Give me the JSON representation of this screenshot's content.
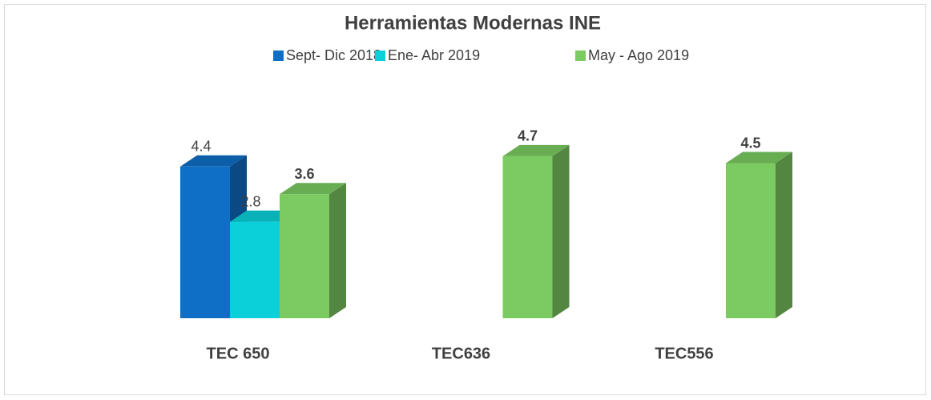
{
  "chart_data": {
    "type": "bar3d",
    "title": "Herramientas Modernas INE",
    "categories": [
      "TEC 650",
      "TEC636",
      "TEC556"
    ],
    "series": [
      {
        "name": "Sept- Dic 2018",
        "color": "#0f6fc6",
        "values": [
          4.4,
          null,
          null
        ]
      },
      {
        "name": "Ene- Abr 2019",
        "color": "#0bd0d9",
        "values": [
          2.8,
          null,
          null
        ]
      },
      {
        "name": "May - Ago 2019",
        "color": "#7ccb62",
        "values": [
          3.6,
          4.7,
          4.5
        ]
      }
    ]
  }
}
